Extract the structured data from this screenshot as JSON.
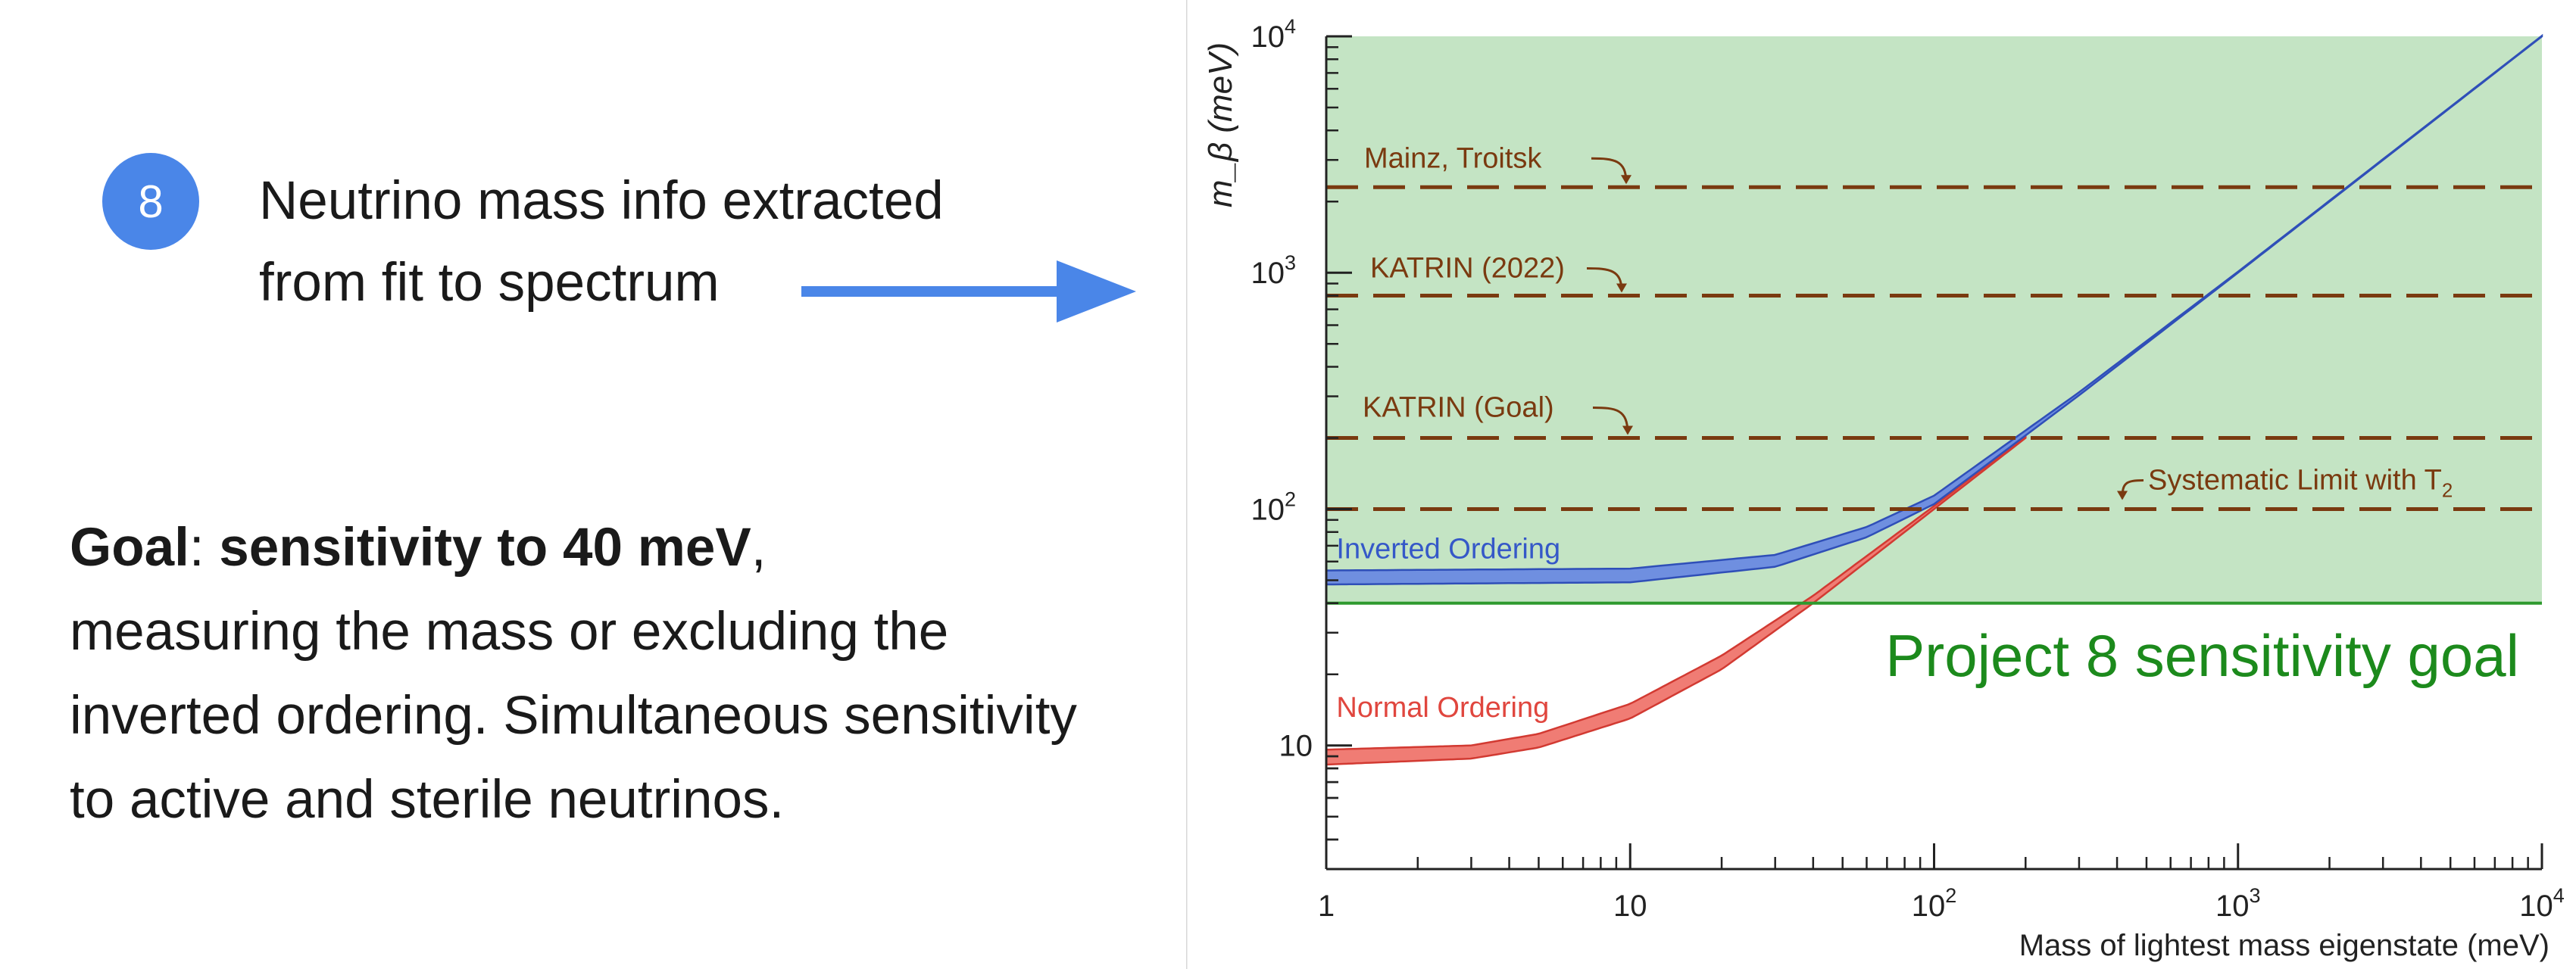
{
  "step": {
    "number": "8",
    "line1": "Neutrino mass info extracted",
    "line2": "from fit to spectrum"
  },
  "goal": {
    "label": "Goal",
    "colon": ": ",
    "highlight": "sensitivity to 40 meV",
    "comma": ",",
    "line2": "measuring the mass or excluding the",
    "line3": "inverted ordering. Simultaneous sensitivity",
    "line4": "to active and sterile neutrinos."
  },
  "colors": {
    "accent": "#4a86e8",
    "shade": "#c4e4c4",
    "goal_line": "#2e9a2e",
    "goal_text": "#1c8a1c",
    "limit": "#7a3a10",
    "inverted": "#3558c8",
    "normal": "#e0463e"
  },
  "chart_data": {
    "type": "line",
    "x_scale": "log",
    "y_scale": "log",
    "xlim": [
      1,
      10000
    ],
    "ylim": [
      3,
      10000
    ],
    "xlabel": "Mass of lightest mass eigenstate (meV)",
    "ylabel": "m_β (meV)",
    "x_ticks": [
      {
        "value": 1,
        "label": "1"
      },
      {
        "value": 10,
        "label": "10"
      },
      {
        "value": 100,
        "label": "10",
        "exp": "2"
      },
      {
        "value": 1000,
        "label": "10",
        "exp": "3"
      },
      {
        "value": 10000,
        "label": "10",
        "exp": "4"
      }
    ],
    "y_ticks": [
      {
        "value": 10,
        "label": "10"
      },
      {
        "value": 100,
        "label": "10",
        "exp": "2"
      },
      {
        "value": 1000,
        "label": "10",
        "exp": "3"
      },
      {
        "value": 10000,
        "label": "10",
        "exp": "4"
      }
    ],
    "limits": [
      {
        "name": "Mainz, Troitsk",
        "value": 2300
      },
      {
        "name": "KATRIN (2022)",
        "value": 800
      },
      {
        "name": "KATRIN (Goal)",
        "value": 200
      },
      {
        "name": "Systematic Limit with T",
        "sub": "2",
        "value": 100
      }
    ],
    "sensitivity_goal": {
      "label": "Project 8 sensitivity goal",
      "value": 40
    },
    "series": [
      {
        "name": "Inverted Ordering",
        "band": [
          {
            "x": 1,
            "low": 48,
            "high": 55
          },
          {
            "x": 10,
            "low": 49,
            "high": 56
          },
          {
            "x": 30,
            "low": 57,
            "high": 64
          },
          {
            "x": 60,
            "low": 76,
            "high": 84
          },
          {
            "x": 100,
            "low": 105,
            "high": 114
          },
          {
            "x": 300,
            "low": 303,
            "high": 312
          },
          {
            "x": 1000,
            "low": 1000,
            "high": 1010
          },
          {
            "x": 10000,
            "low": 9990,
            "high": 10050
          }
        ]
      },
      {
        "name": "Normal Ordering",
        "band": [
          {
            "x": 1,
            "low": 8.3,
            "high": 9.6
          },
          {
            "x": 3,
            "low": 8.8,
            "high": 10.0
          },
          {
            "x": 5,
            "low": 9.8,
            "high": 11.2
          },
          {
            "x": 10,
            "low": 13,
            "high": 15
          },
          {
            "x": 20,
            "low": 21,
            "high": 24
          },
          {
            "x": 40,
            "low": 40,
            "high": 43
          },
          {
            "x": 100,
            "low": 100,
            "high": 103
          },
          {
            "x": 200,
            "low": 200,
            "high": 204
          }
        ]
      }
    ]
  }
}
